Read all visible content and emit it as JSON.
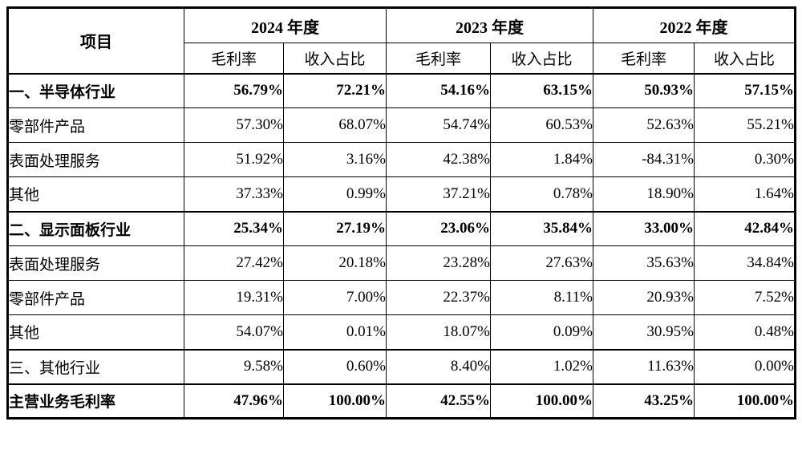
{
  "table": {
    "item_header": "项目",
    "year_groups": [
      {
        "label": "2024 年度"
      },
      {
        "label": "2023 年度"
      },
      {
        "label": "2022 年度"
      }
    ],
    "sub_headers": [
      "毛利率",
      "收入占比",
      "毛利率",
      "收入占比",
      "毛利率",
      "收入占比"
    ],
    "rows": [
      {
        "label": "一、半导体行业",
        "bold": true,
        "thick_top": true,
        "values": [
          "56.79%",
          "72.21%",
          "54.16%",
          "63.15%",
          "50.93%",
          "57.15%"
        ]
      },
      {
        "label": "零部件产品",
        "bold": false,
        "thick_top": false,
        "values": [
          "57.30%",
          "68.07%",
          "54.74%",
          "60.53%",
          "52.63%",
          "55.21%"
        ]
      },
      {
        "label": "表面处理服务",
        "bold": false,
        "thick_top": false,
        "values": [
          "51.92%",
          "3.16%",
          "42.38%",
          "1.84%",
          "-84.31%",
          "0.30%"
        ]
      },
      {
        "label": "其他",
        "bold": false,
        "thick_top": false,
        "values": [
          "37.33%",
          "0.99%",
          "37.21%",
          "0.78%",
          "18.90%",
          "1.64%"
        ]
      },
      {
        "label": "二、显示面板行业",
        "bold": true,
        "thick_top": true,
        "values": [
          "25.34%",
          "27.19%",
          "23.06%",
          "35.84%",
          "33.00%",
          "42.84%"
        ]
      },
      {
        "label": "表面处理服务",
        "bold": false,
        "thick_top": false,
        "values": [
          "27.42%",
          "20.18%",
          "23.28%",
          "27.63%",
          "35.63%",
          "34.84%"
        ]
      },
      {
        "label": "零部件产品",
        "bold": false,
        "thick_top": false,
        "values": [
          "19.31%",
          "7.00%",
          "22.37%",
          "8.11%",
          "20.93%",
          "7.52%"
        ]
      },
      {
        "label": "其他",
        "bold": false,
        "thick_top": false,
        "values": [
          "54.07%",
          "0.01%",
          "18.07%",
          "0.09%",
          "30.95%",
          "0.48%"
        ]
      },
      {
        "label": "三、其他行业",
        "bold": false,
        "thick_top": true,
        "values": [
          "9.58%",
          "0.60%",
          "8.40%",
          "1.02%",
          "11.63%",
          "0.00%"
        ]
      },
      {
        "label": "主营业务毛利率",
        "bold": true,
        "thick_top": true,
        "values": [
          "47.96%",
          "100.00%",
          "42.55%",
          "100.00%",
          "43.25%",
          "100.00%"
        ]
      }
    ],
    "colors": {
      "border": "#000000",
      "background": "#ffffff",
      "text": "#000000"
    }
  }
}
